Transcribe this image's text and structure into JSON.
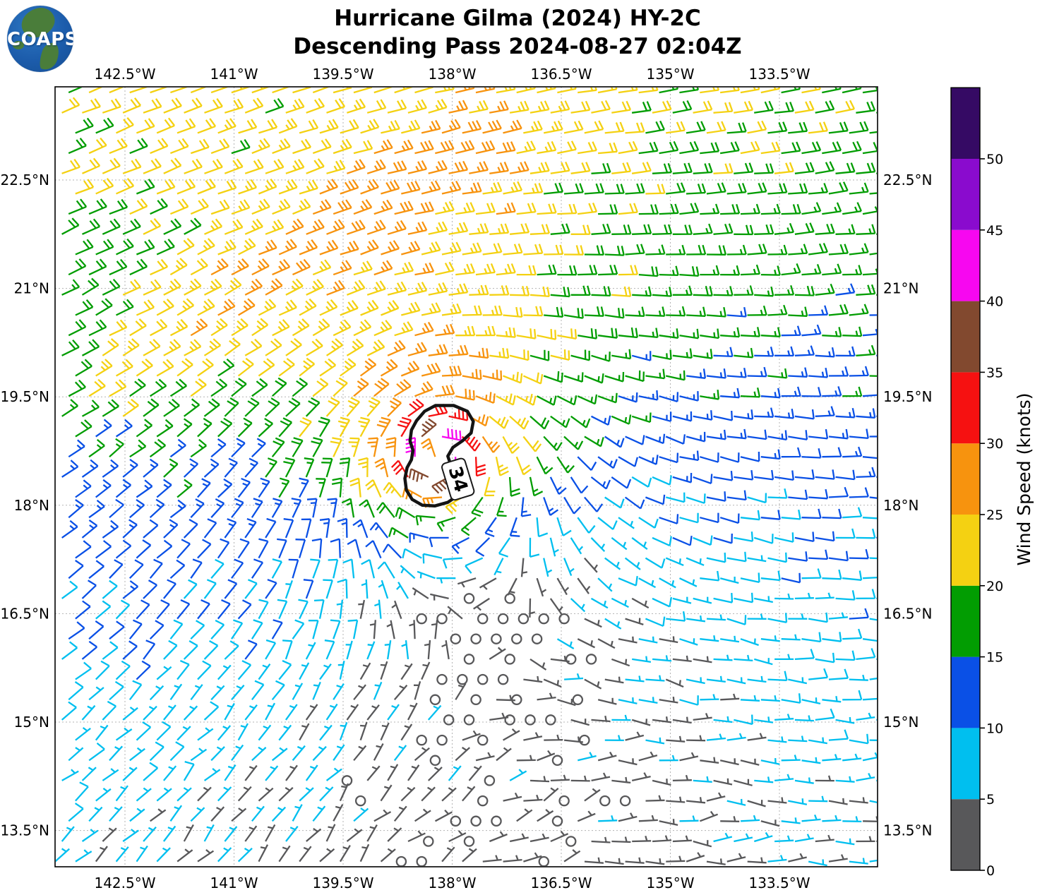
{
  "title": {
    "line1": "Hurricane Gilma (2024) HY-2C",
    "line2": "Descending Pass 2024-08-27 02:04Z"
  },
  "logo": {
    "text": "COAPS"
  },
  "axes": {
    "lon_ticks": [
      "142.5°W",
      "141°W",
      "139.5°W",
      "138°W",
      "136.5°W",
      "135°W",
      "133.5°W"
    ],
    "lon_tick_values_west": [
      142.5,
      141,
      139.5,
      138,
      136.5,
      135,
      133.5
    ],
    "lat_ticks": [
      "22.5°N",
      "21°N",
      "19.5°N",
      "18°N",
      "16.5°N",
      "15°N",
      "13.5°N"
    ],
    "lat_tick_values_north": [
      22.5,
      21,
      19.5,
      18,
      16.5,
      15,
      13.5
    ]
  },
  "colorbar": {
    "label": "Wind Speed (knots)",
    "tick_values": [
      0,
      5,
      10,
      15,
      20,
      25,
      30,
      35,
      40,
      45,
      50
    ],
    "max_value": 55
  },
  "colors": {
    "background": "#ffffff",
    "frame": "#000000",
    "gridline": "#b3b3b3",
    "contour": "#141414",
    "label_box_fill": "#ffffff",
    "label_box_edge": "#1a1a1a",
    "text": "#000000"
  },
  "chart_data": {
    "type": "wind_barb_map",
    "storm_name": "Hurricane Gilma (2024)",
    "satellite": "HY-2C",
    "pass_type": "Descending Pass",
    "pass_time": "2024-08-27 02:04Z",
    "extent": {
      "lon_west_max": 143.46,
      "lon_west_min": 132.15,
      "lat_min": 13.0,
      "lat_max": 23.79
    },
    "speed_bin_edges_knots": [
      0,
      5,
      10,
      15,
      20,
      25,
      30,
      35,
      40,
      45,
      50,
      55
    ],
    "bin_colors": [
      "#58585A",
      "#00BFEF",
      "#0A50E6",
      "#029D02",
      "#F4D112",
      "#F7930E",
      "#F61111",
      "#82492F",
      "#F707F0",
      "#8A0BCE",
      "#350A64"
    ],
    "barb_convention": {
      "full_barb_knots": 10,
      "half_barb_knots": 5,
      "flag_knots": 50,
      "calm_circle_below_knots": 2.5
    },
    "barb_grid_step_deg": 0.28,
    "wind_model": {
      "vortex_center_lon_west": 138.2,
      "vortex_center_lat": 18.68,
      "vmax_knots": 46,
      "rmax_deg": 0.22,
      "inner_exp": 0.35,
      "mid_exp": 0.5,
      "mid_radius_deg": 1.2,
      "outer_exp": 1.05,
      "trade_blend_radius_deg": 1.0,
      "trade_u0_knots": 6.5,
      "trade_du_dlat": 1.05,
      "trade_ref_lat": 13.0,
      "trade_v_ratio": 0.3,
      "band_boost": {
        "amp_knots": 5.5,
        "width_deg": 0.85,
        "a_lon_west": 142.55,
        "a_lat": 19.85,
        "b_lon_west": 137.7,
        "b_lat": 23.0
      },
      "noise_uv_knots": 1.2,
      "noise_speed_knots": 1.3
    },
    "contour": {
      "value_knots": 34,
      "label": "34",
      "label_lon_west": 137.92,
      "label_lat": 18.36,
      "label_rotation_deg": 73,
      "polygon_lonwest_lat": [
        [
          138.23,
          19.38
        ],
        [
          137.98,
          19.38
        ],
        [
          137.79,
          19.3
        ],
        [
          137.71,
          19.16
        ],
        [
          137.74,
          19.0
        ],
        [
          137.86,
          18.89
        ],
        [
          137.99,
          18.8
        ],
        [
          138.06,
          18.68
        ],
        [
          138.02,
          18.56
        ],
        [
          137.91,
          18.49
        ],
        [
          137.83,
          18.38
        ],
        [
          137.84,
          18.24
        ],
        [
          137.93,
          18.13
        ],
        [
          138.06,
          18.04
        ],
        [
          138.24,
          17.99
        ],
        [
          138.41,
          18.0
        ],
        [
          138.55,
          18.08
        ],
        [
          138.63,
          18.21
        ],
        [
          138.65,
          18.37
        ],
        [
          138.62,
          18.52
        ],
        [
          138.56,
          18.63
        ],
        [
          138.54,
          18.76
        ],
        [
          138.58,
          18.89
        ],
        [
          138.56,
          19.04
        ],
        [
          138.49,
          19.17
        ],
        [
          138.38,
          19.3
        ]
      ]
    }
  }
}
